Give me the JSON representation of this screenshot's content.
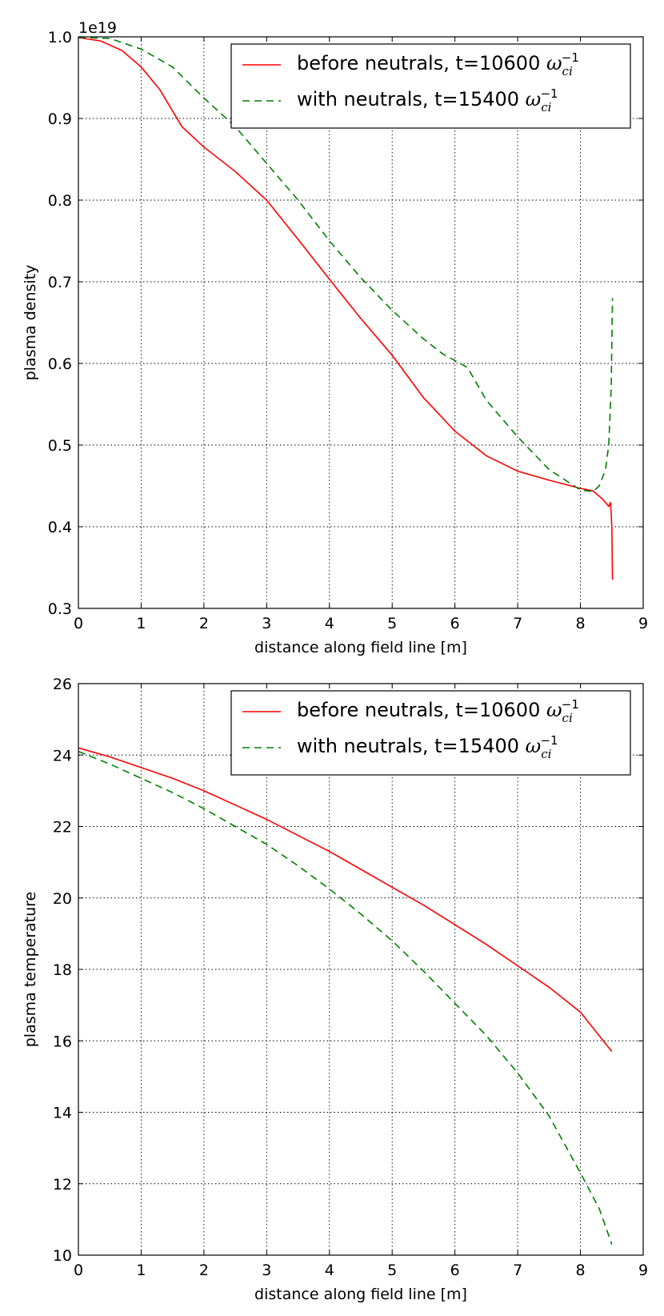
{
  "chart_data": [
    {
      "type": "line",
      "xlabel": "distance along field line [m]",
      "ylabel": "plasma density",
      "offset_text": "1e19",
      "xlim": [
        0,
        9
      ],
      "ylim": [
        0.3,
        1.0
      ],
      "xticks": [
        0,
        1,
        2,
        3,
        4,
        5,
        6,
        7,
        8,
        9
      ],
      "xtick_labels": [
        "0",
        "1",
        "2",
        "3",
        "4",
        "5",
        "6",
        "7",
        "8",
        "9"
      ],
      "yticks": [
        0.3,
        0.4,
        0.5,
        0.6,
        0.7,
        0.8,
        0.9,
        1.0
      ],
      "ytick_labels": [
        "0.3",
        "0.4",
        "0.5",
        "0.6",
        "0.7",
        "0.8",
        "0.9",
        "1.0"
      ],
      "grid": true,
      "legend_position": "top-right",
      "series": [
        {
          "name": "before neutrals, t=10600",
          "label_text": "before neutrals, t=10600",
          "color": "#ff0000",
          "style": "solid",
          "x": [
            0,
            0.35,
            0.7,
            1.0,
            1.3,
            1.65,
            2.0,
            2.5,
            3.0,
            3.5,
            4.0,
            4.5,
            5.0,
            5.5,
            6.0,
            6.5,
            7.0,
            7.5,
            8.0,
            8.2,
            8.35,
            8.45,
            8.48,
            8.5,
            8.51
          ],
          "y": [
            0.999,
            0.995,
            0.983,
            0.963,
            0.935,
            0.89,
            0.865,
            0.835,
            0.8,
            0.752,
            0.703,
            0.655,
            0.61,
            0.558,
            0.517,
            0.487,
            0.468,
            0.457,
            0.447,
            0.444,
            0.434,
            0.425,
            0.43,
            0.4,
            0.335
          ]
        },
        {
          "name": "with neutrals, t=15400",
          "label_text": "with neutrals, t=15400",
          "color": "#007f00",
          "style": "dashed",
          "x": [
            0,
            0.5,
            1.0,
            1.5,
            2.0,
            2.5,
            3.0,
            3.5,
            4.0,
            4.5,
            5.0,
            5.5,
            5.8,
            6.2,
            6.5,
            7.0,
            7.5,
            8.0,
            8.2,
            8.3,
            8.4,
            8.45,
            8.49,
            8.51
          ],
          "y": [
            0.999,
            0.998,
            0.985,
            0.963,
            0.925,
            0.89,
            0.845,
            0.8,
            0.75,
            0.705,
            0.665,
            0.63,
            0.612,
            0.595,
            0.555,
            0.51,
            0.47,
            0.445,
            0.443,
            0.45,
            0.47,
            0.5,
            0.57,
            0.68
          ]
        }
      ]
    },
    {
      "type": "line",
      "xlabel": "distance along field line [m]",
      "ylabel": "plasma temperature",
      "xlim": [
        0,
        9
      ],
      "ylim": [
        10,
        26
      ],
      "xticks": [
        0,
        1,
        2,
        3,
        4,
        5,
        6,
        7,
        8,
        9
      ],
      "xtick_labels": [
        "0",
        "1",
        "2",
        "3",
        "4",
        "5",
        "6",
        "7",
        "8",
        "9"
      ],
      "yticks": [
        10,
        12,
        14,
        16,
        18,
        20,
        22,
        24,
        26
      ],
      "ytick_labels": [
        "10",
        "12",
        "14",
        "16",
        "18",
        "20",
        "22",
        "24",
        "26"
      ],
      "grid": true,
      "legend_position": "top-right",
      "series": [
        {
          "name": "before neutrals, t=10600",
          "label_text": "before neutrals, t=10600",
          "color": "#ff0000",
          "style": "solid",
          "x": [
            0,
            0.5,
            1,
            1.5,
            2,
            2.5,
            3,
            3.5,
            4,
            4.5,
            5,
            5.5,
            6,
            6.5,
            7,
            7.5,
            8,
            8.5
          ],
          "y": [
            24.2,
            23.95,
            23.65,
            23.35,
            23.0,
            22.6,
            22.2,
            21.75,
            21.3,
            20.8,
            20.3,
            19.8,
            19.25,
            18.7,
            18.1,
            17.5,
            16.8,
            15.7
          ]
        },
        {
          "name": "with neutrals, t=15400",
          "label_text": "with neutrals, t=15400",
          "color": "#007f00",
          "style": "dashed",
          "x": [
            0,
            0.5,
            1,
            1.5,
            2,
            2.5,
            3,
            3.5,
            4,
            4.5,
            5,
            5.5,
            6,
            6.5,
            7,
            7.5,
            8,
            8.3,
            8.5
          ],
          "y": [
            24.1,
            23.75,
            23.35,
            22.95,
            22.5,
            22.0,
            21.5,
            20.9,
            20.25,
            19.55,
            18.8,
            17.95,
            17.05,
            16.15,
            15.1,
            13.9,
            12.3,
            11.3,
            10.3
          ]
        }
      ]
    }
  ]
}
